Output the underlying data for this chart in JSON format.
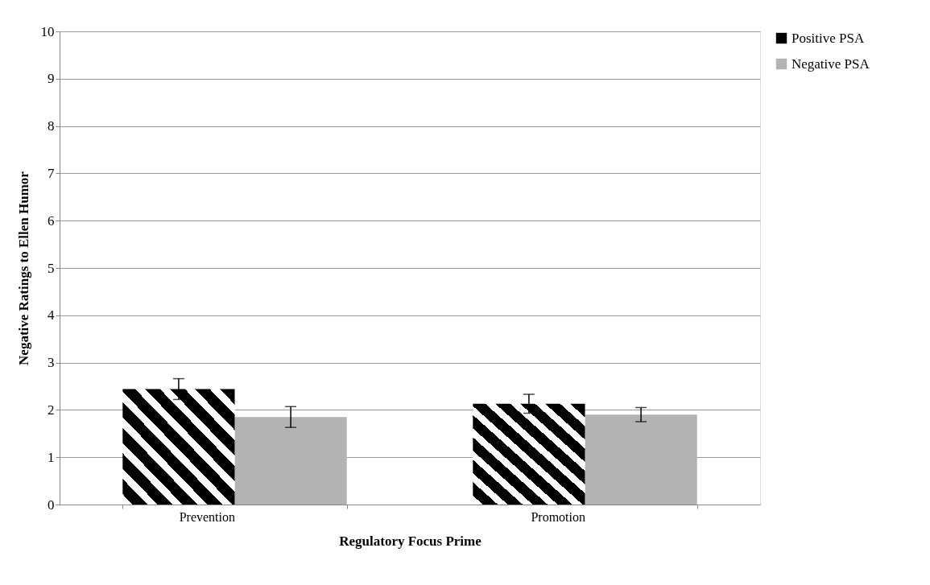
{
  "chart_data": {
    "type": "bar",
    "xlabel": "Regulatory Focus Prime",
    "ylabel": "Negative Ratings to Ellen Humor",
    "categories": [
      "Prevention",
      "Promotion"
    ],
    "series": [
      {
        "name": "Positive PSA",
        "color": "#000000",
        "values": [
          2.44,
          2.13
        ],
        "errors": [
          0.22,
          0.2
        ]
      },
      {
        "name": "Negative PSA",
        "color": "#b3b3b3",
        "values": [
          1.85,
          1.9
        ],
        "errors": [
          0.22,
          0.15
        ]
      }
    ],
    "ylim": [
      0,
      10
    ],
    "yticks": [
      0,
      1,
      2,
      3,
      4,
      5,
      6,
      7,
      8,
      9,
      10
    ],
    "grid": "y",
    "legend": "right"
  }
}
